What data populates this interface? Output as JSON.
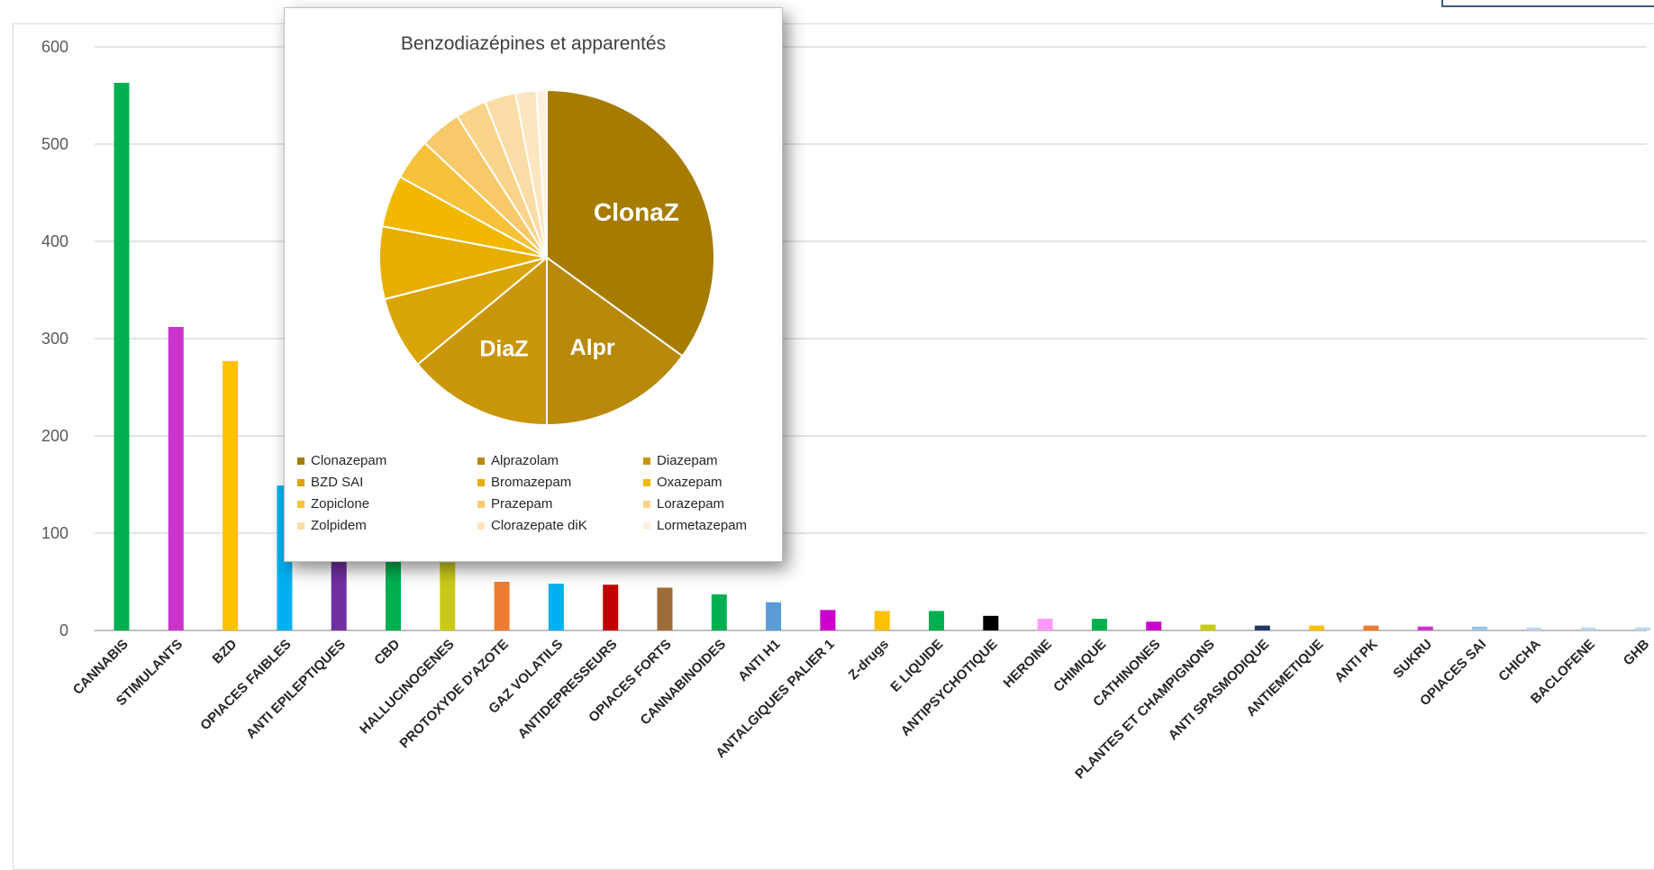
{
  "chart_data": [
    {
      "type": "bar",
      "title": "",
      "xlabel": "",
      "ylabel": "",
      "ylim": [
        0,
        600
      ],
      "yticks": [
        0,
        100,
        200,
        300,
        400,
        500,
        600
      ],
      "grid": true,
      "categories": [
        "CANNABIS",
        "STIMULANTS",
        "BZD",
        "OPIACES FAIBLES",
        "ANTI EPILEPTIQUES",
        "CBD",
        "HALLUCINOGENES",
        "PROTOXYDE D'AZOTE",
        "GAZ VOLATILS",
        "ANTIDEPRESSEURS",
        "OPIACES FORTS",
        "CANNABINOIDES",
        "ANTI H1",
        "ANTALGIQUES PALIER 1",
        "Z-drugs",
        "E LIQUIDE",
        "ANTIPSYCHOTIQUE",
        "HEROINE",
        "CHIMIQUE",
        "CATHINONES",
        "PLANTES ET CHAMPIGNONS",
        "ANTI SPASMODIQUE",
        "ANTIEMETIQUE",
        "ANTI PK",
        "SUKRU",
        "OPIACES SAI",
        "CHICHA",
        "BACLOFENE",
        "GHB"
      ],
      "values": [
        563,
        312,
        277,
        149,
        75,
        72,
        70,
        50,
        48,
        47,
        44,
        37,
        29,
        21,
        20,
        20,
        15,
        12,
        12,
        9,
        6,
        5,
        5,
        5,
        4,
        4,
        3,
        3,
        3
      ],
      "colors": [
        "#00b050",
        "#cc33cc",
        "#ffc000",
        "#00b0f0",
        "#7030a0",
        "#00b050",
        "#c9c91a",
        "#ed7d31",
        "#00b0f0",
        "#c00000",
        "#9e6b3a",
        "#00b050",
        "#5b9bd5",
        "#cc00cc",
        "#ffc000",
        "#00b050",
        "#000000",
        "#ff99ff",
        "#00b050",
        "#cc00cc",
        "#c9c91a",
        "#1f3864",
        "#ffc000",
        "#ed7d31",
        "#cc33cc",
        "#9dc3e6",
        "#bdd7ee",
        "#bdd7ee",
        "#bdd7ee"
      ]
    },
    {
      "type": "pie",
      "title": "Benzodiazépines et apparentés",
      "categories": [
        "Clonazepam",
        "Alprazolam",
        "Diazepam",
        "BZD SAI",
        "Bromazepam",
        "Oxazepam",
        "Zopiclone",
        "Prazepam",
        "Lorazepam",
        "Zolpidem",
        "Clorazepate diK",
        "Lormetazepam"
      ],
      "values": [
        35,
        15,
        14,
        7,
        7,
        5,
        4,
        4,
        3,
        3,
        2,
        1
      ],
      "slice_labels": [
        "ClonaZ",
        "Alpr",
        "DiaZ",
        "",
        "",
        "",
        "",
        "",
        "",
        "",
        "",
        ""
      ],
      "colors": [
        "#a67c00",
        "#b8890a",
        "#c9960c",
        "#d8a406",
        "#e6ae00",
        "#f2b800",
        "#f7c23a",
        "#f8c96a",
        "#fad48a",
        "#fbdca6",
        "#fce6c0",
        "#fdf0dc"
      ],
      "legend_position": "bottom"
    }
  ]
}
